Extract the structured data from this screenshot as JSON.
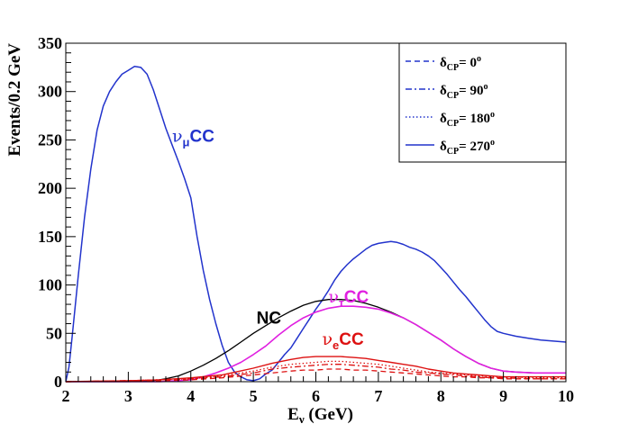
{
  "chart_data": {
    "type": "line",
    "xlabel": "E",
    "xlabel_sub": "ν",
    "xlabel_unit": " (GeV)",
    "ylabel": "Events/0.2 GeV",
    "xlim": [
      2,
      10
    ],
    "ylim": [
      0,
      350
    ],
    "xticks": [
      2,
      3,
      4,
      5,
      6,
      7,
      8,
      9,
      10
    ],
    "yticks": [
      0,
      50,
      100,
      150,
      200,
      250,
      300,
      350
    ],
    "grid": false,
    "legend_position": "top-right",
    "legend": [
      {
        "main": "δ",
        "sub": "CP",
        "label": "= 0",
        "sup": "o",
        "style": "dashed"
      },
      {
        "main": "δ",
        "sub": "CP",
        "label": "= 90",
        "sup": "o",
        "style": "dashdot"
      },
      {
        "main": "δ",
        "sub": "CP",
        "label": "= 180",
        "sup": "o",
        "style": "dotted"
      },
      {
        "main": "δ",
        "sub": "CP",
        "label": "=  270",
        "sup": "o",
        "style": "solid"
      }
    ],
    "annotations": [
      {
        "main": "ν",
        "sub": "μ",
        "text": "CC",
        "color": "#2233cc",
        "x": 3.7,
        "y": 248
      },
      {
        "main": "",
        "sub": "",
        "text": "NC",
        "color": "#000000",
        "x": 5.05,
        "y": 60
      },
      {
        "main": "ν",
        "sub": "τ",
        "text": "CC",
        "color": "#e020e0",
        "x": 6.2,
        "y": 82
      },
      {
        "main": "ν",
        "sub": "e",
        "text": "CC",
        "color": "#dd1111",
        "x": 6.1,
        "y": 38
      }
    ],
    "series": [
      {
        "color": "#2233cc",
        "style": "solid",
        "width": 1.5,
        "x": [
          2.0,
          2.05,
          2.1,
          2.2,
          2.3,
          2.4,
          2.5,
          2.6,
          2.7,
          2.8,
          2.9,
          3.0,
          3.1,
          3.2,
          3.3,
          3.4,
          3.5,
          3.6,
          3.7,
          3.8,
          3.9,
          4.0,
          4.1,
          4.2,
          4.3,
          4.4,
          4.5,
          4.6,
          4.7,
          4.8,
          4.9,
          5.0,
          5.1,
          5.2,
          5.3,
          5.4,
          5.5,
          5.6,
          5.7,
          5.8,
          5.9,
          6.0,
          6.1,
          6.2,
          6.3,
          6.4,
          6.5,
          6.6,
          6.7,
          6.8,
          6.9,
          7.0,
          7.1,
          7.2,
          7.3,
          7.4,
          7.5,
          7.6,
          7.7,
          7.8,
          7.9,
          8.0,
          8.1,
          8.2,
          8.3,
          8.4,
          8.5,
          8.6,
          8.7,
          8.8,
          8.9,
          9.0,
          9.2,
          9.4,
          9.6,
          9.8,
          10.0
        ],
        "y": [
          0,
          15,
          45,
          110,
          170,
          220,
          260,
          285,
          300,
          310,
          318,
          322,
          326,
          325,
          318,
          302,
          282,
          262,
          245,
          228,
          210,
          190,
          150,
          115,
          85,
          60,
          38,
          20,
          10,
          5,
          2,
          1,
          3,
          8,
          12,
          20,
          28,
          35,
          45,
          55,
          65,
          75,
          84,
          94,
          105,
          114,
          121,
          127,
          132,
          137,
          141,
          143,
          144,
          145,
          144,
          142,
          139,
          137,
          134,
          130,
          125,
          118,
          111,
          103,
          95,
          88,
          80,
          72,
          64,
          57,
          52,
          50,
          47,
          45,
          43,
          42,
          41
        ]
      },
      {
        "color": "#000000",
        "style": "solid",
        "width": 1.3,
        "x": [
          2.0,
          2.5,
          3.0,
          3.4,
          3.6,
          3.8,
          4.0,
          4.2,
          4.4,
          4.6,
          4.8,
          5.0,
          5.2,
          5.4,
          5.6,
          5.8,
          6.0,
          6.2,
          6.4,
          6.6,
          6.8,
          7.0,
          7.2,
          7.4,
          7.6,
          7.8,
          8.0,
          8.2,
          8.4,
          8.6,
          8.8,
          9.0,
          9.2,
          9.5,
          10.0
        ],
        "y": [
          0,
          0,
          0,
          1,
          3,
          6,
          11,
          17,
          24,
          32,
          41,
          50,
          58,
          66,
          73,
          79,
          83,
          85,
          85,
          84,
          81,
          77,
          72,
          66,
          59,
          51,
          43,
          34,
          26,
          19,
          14,
          11,
          10,
          9,
          9
        ]
      },
      {
        "color": "#e020e0",
        "style": "solid",
        "width": 1.6,
        "x": [
          2.0,
          3.0,
          3.5,
          4.0,
          4.2,
          4.4,
          4.6,
          4.8,
          5.0,
          5.2,
          5.4,
          5.6,
          5.8,
          6.0,
          6.2,
          6.4,
          6.6,
          6.8,
          7.0,
          7.2,
          7.4,
          7.6,
          7.8,
          8.0,
          8.2,
          8.4,
          8.6,
          8.8,
          9.0,
          9.2,
          9.5,
          10.0
        ],
        "y": [
          0,
          0,
          0,
          2,
          5,
          9,
          14,
          20,
          28,
          37,
          48,
          58,
          66,
          72,
          76,
          78,
          78,
          77,
          75,
          71,
          66,
          59,
          51,
          43,
          34,
          26,
          19,
          14,
          11,
          10,
          9,
          9
        ]
      },
      {
        "color": "#dd1111",
        "style": "solid",
        "width": 1.4,
        "x": [
          2.0,
          3.0,
          3.5,
          4.0,
          4.5,
          5.0,
          5.3,
          5.6,
          5.8,
          6.0,
          6.2,
          6.4,
          6.6,
          6.8,
          7.0,
          7.2,
          7.4,
          7.6,
          7.8,
          8.0,
          8.2,
          8.4,
          8.6,
          8.8,
          9.0,
          9.5,
          10.0
        ],
        "y": [
          0,
          1,
          2,
          4,
          7,
          14,
          19,
          23,
          25,
          26,
          26,
          26,
          25,
          24,
          22,
          20,
          18,
          16,
          13,
          11,
          9,
          8,
          7,
          6,
          5,
          5,
          5
        ]
      },
      {
        "color": "#dd1111",
        "style": "dotted",
        "width": 1.3,
        "x": [
          2.0,
          3.0,
          3.5,
          4.0,
          4.5,
          5.0,
          5.3,
          5.6,
          5.8,
          6.0,
          6.2,
          6.4,
          6.6,
          6.8,
          7.0,
          7.2,
          7.4,
          7.6,
          7.8,
          8.0,
          8.2,
          8.4,
          8.6,
          8.8,
          9.0,
          9.5,
          10.0
        ],
        "y": [
          0,
          1,
          2,
          3,
          6,
          11,
          15,
          18,
          19,
          20,
          21,
          21,
          20,
          19,
          18,
          16,
          14,
          12,
          10,
          9,
          8,
          7,
          6,
          5,
          5,
          4,
          4
        ]
      },
      {
        "color": "#dd1111",
        "style": "dashdot",
        "width": 1.3,
        "x": [
          2.0,
          3.0,
          3.5,
          4.0,
          4.5,
          5.0,
          5.3,
          5.6,
          5.8,
          6.0,
          6.2,
          6.4,
          6.6,
          6.8,
          7.0,
          7.2,
          7.4,
          7.6,
          7.8,
          8.0,
          8.2,
          8.4,
          8.6,
          8.8,
          9.0,
          9.5,
          10.0
        ],
        "y": [
          0,
          1,
          2,
          3,
          5,
          9,
          13,
          15,
          16,
          17,
          18,
          18,
          17,
          16,
          15,
          13,
          12,
          10,
          9,
          8,
          7,
          6,
          5,
          4,
          4,
          3,
          3
        ]
      },
      {
        "color": "#dd1111",
        "style": "dashed",
        "width": 1.3,
        "x": [
          2.0,
          3.0,
          3.5,
          4.0,
          4.5,
          5.0,
          5.3,
          5.6,
          5.8,
          6.0,
          6.2,
          6.4,
          6.6,
          6.8,
          7.0,
          7.2,
          7.4,
          7.6,
          7.8,
          8.0,
          8.2,
          8.4,
          8.6,
          8.8,
          9.0,
          9.5,
          10.0
        ],
        "y": [
          0,
          1,
          1,
          2,
          4,
          7,
          9,
          11,
          12,
          12,
          13,
          13,
          12,
          12,
          11,
          10,
          9,
          8,
          7,
          6,
          5,
          5,
          4,
          4,
          3,
          3,
          3
        ]
      }
    ]
  }
}
